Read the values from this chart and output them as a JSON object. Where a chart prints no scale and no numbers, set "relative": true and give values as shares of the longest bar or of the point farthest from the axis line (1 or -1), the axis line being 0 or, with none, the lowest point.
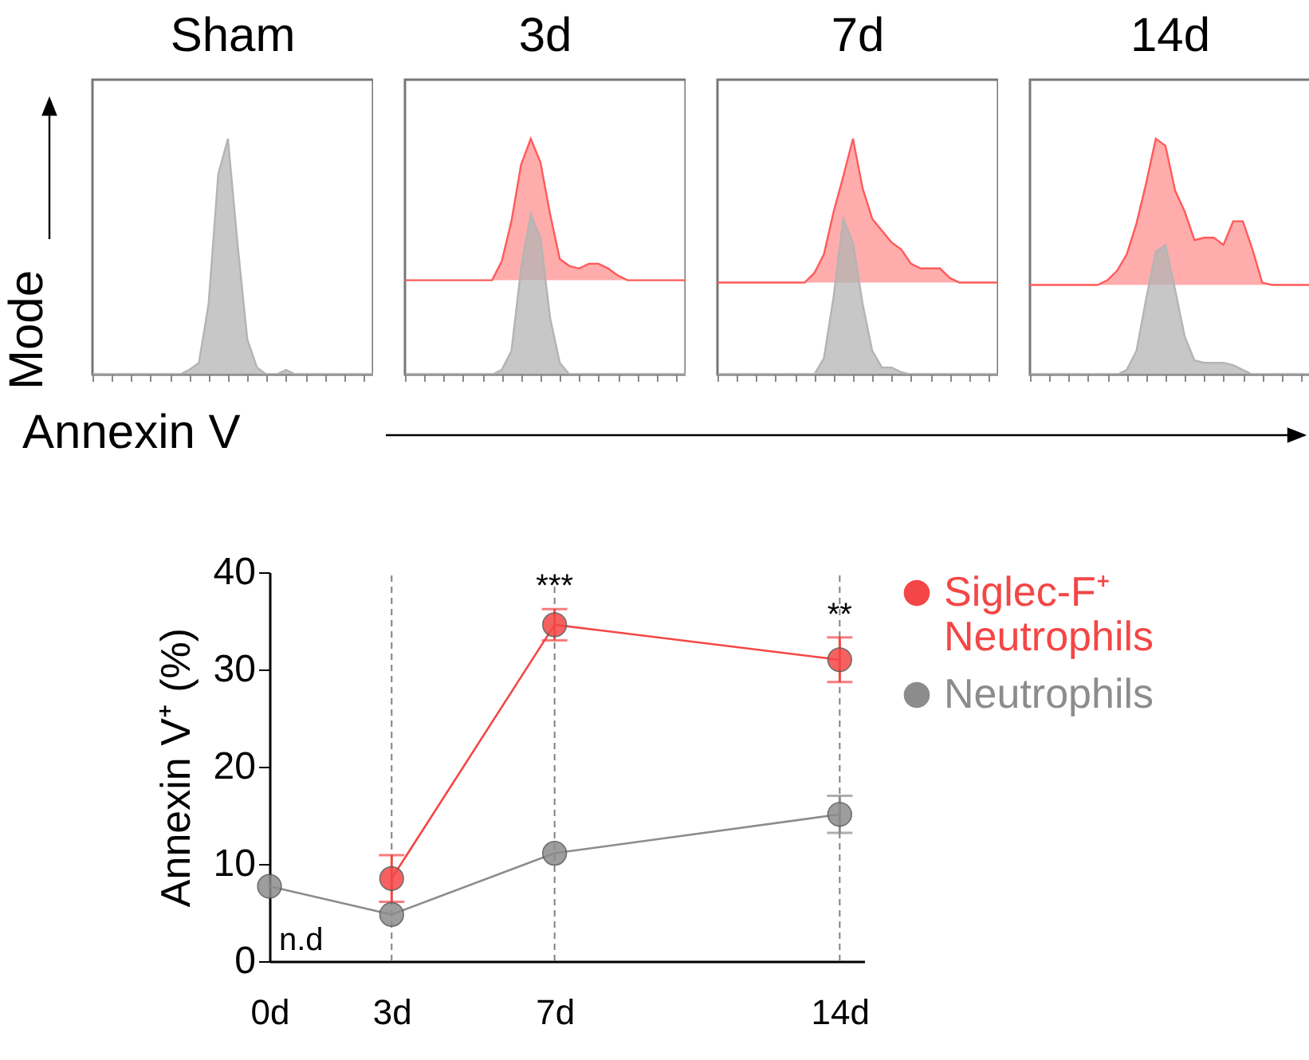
{
  "chart_data": [
    {
      "type": "area",
      "title": "Sham",
      "ylabel": "Mode",
      "xlabel": "Annexin V",
      "relative": true,
      "tick_labels": false,
      "categories": [
        null,
        null,
        null,
        null,
        null,
        null,
        null,
        null,
        null,
        null,
        null,
        null,
        null,
        null,
        null,
        null,
        null,
        null,
        null,
        null,
        null,
        null,
        null,
        null,
        null,
        null,
        null,
        null,
        null,
        null
      ],
      "series": [
        {
          "color": "#b4b4b4",
          "values": [
            0,
            0,
            0,
            0,
            0,
            0,
            0,
            0,
            0,
            0,
            0.02,
            0.05,
            0.3,
            0.85,
            1.0,
            0.55,
            0.15,
            0.03,
            0,
            0,
            0.02,
            0,
            0,
            0,
            0,
            0,
            0,
            0,
            0,
            0
          ]
        }
      ]
    },
    {
      "type": "area",
      "title": "3d",
      "relative": true,
      "tick_labels": false,
      "categories": [
        null,
        null,
        null,
        null,
        null,
        null,
        null,
        null,
        null,
        null,
        null,
        null,
        null,
        null,
        null,
        null,
        null,
        null,
        null,
        null,
        null,
        null,
        null,
        null,
        null,
        null,
        null,
        null,
        null,
        null
      ],
      "series": [
        {
          "color": "#ff5a5a",
          "values": [
            0.4,
            0.4,
            0.4,
            0.4,
            0.4,
            0.4,
            0.4,
            0.4,
            0.4,
            0.4,
            0.48,
            0.65,
            0.89,
            1.0,
            0.9,
            0.68,
            0.49,
            0.46,
            0.45,
            0.47,
            0.47,
            0.45,
            0.42,
            0.4,
            0.4,
            0.4,
            0.4,
            0.4,
            0.4,
            0.4
          ]
        },
        {
          "color": "#b4b4b4",
          "values": [
            0,
            0,
            0,
            0,
            0,
            0,
            0,
            0,
            0,
            0,
            0.02,
            0.1,
            0.45,
            0.68,
            0.58,
            0.24,
            0.05,
            0,
            0,
            0,
            0,
            0,
            0,
            0,
            0,
            0,
            0,
            0,
            0,
            0
          ]
        }
      ]
    },
    {
      "type": "area",
      "title": "7d",
      "relative": true,
      "tick_labels": false,
      "categories": [
        null,
        null,
        null,
        null,
        null,
        null,
        null,
        null,
        null,
        null,
        null,
        null,
        null,
        null,
        null,
        null,
        null,
        null,
        null,
        null,
        null,
        null,
        null,
        null,
        null,
        null,
        null,
        null,
        null,
        null
      ],
      "series": [
        {
          "color": "#ff5a5a",
          "values": [
            0.39,
            0.39,
            0.39,
            0.39,
            0.39,
            0.39,
            0.39,
            0.39,
            0.39,
            0.39,
            0.43,
            0.51,
            0.69,
            0.84,
            1.0,
            0.79,
            0.66,
            0.61,
            0.56,
            0.53,
            0.47,
            0.45,
            0.45,
            0.45,
            0.41,
            0.39,
            0.39,
            0.39,
            0.39,
            0.39
          ]
        },
        {
          "color": "#b4b4b4",
          "values": [
            0,
            0,
            0,
            0,
            0,
            0,
            0,
            0,
            0,
            0,
            0,
            0.07,
            0.33,
            0.66,
            0.56,
            0.3,
            0.1,
            0.03,
            0.03,
            0.01,
            0,
            0,
            0,
            0,
            0,
            0,
            0,
            0,
            0,
            0
          ]
        }
      ]
    },
    {
      "type": "area",
      "title": "14d",
      "relative": true,
      "tick_labels": false,
      "categories": [
        null,
        null,
        null,
        null,
        null,
        null,
        null,
        null,
        null,
        null,
        null,
        null,
        null,
        null,
        null,
        null,
        null,
        null,
        null,
        null,
        null,
        null,
        null,
        null,
        null,
        null,
        null,
        null,
        null,
        null
      ],
      "series": [
        {
          "color": "#ff5a5a",
          "values": [
            0.38,
            0.38,
            0.38,
            0.38,
            0.38,
            0.38,
            0.38,
            0.38,
            0.4,
            0.44,
            0.51,
            0.64,
            0.81,
            1.0,
            0.97,
            0.78,
            0.69,
            0.57,
            0.58,
            0.58,
            0.55,
            0.65,
            0.65,
            0.53,
            0.39,
            0.38,
            0.38,
            0.38,
            0.38,
            0.38
          ]
        },
        {
          "color": "#b4b4b4",
          "values": [
            0,
            0,
            0,
            0,
            0,
            0,
            0,
            0,
            0,
            0,
            0.02,
            0.1,
            0.32,
            0.52,
            0.55,
            0.36,
            0.16,
            0.06,
            0.05,
            0.05,
            0.05,
            0.04,
            0.02,
            0,
            0,
            0,
            0,
            0,
            0,
            0
          ]
        }
      ]
    },
    {
      "type": "line",
      "ylabel": "Annexin V⁺ (%)",
      "marker": "circle",
      "legend": "right",
      "grid": false,
      "x": [
        0,
        3,
        7,
        14
      ],
      "xlim": [
        0,
        14.6
      ],
      "xticks": [
        {
          "value": 0,
          "label": "0d"
        },
        {
          "value": 3,
          "label": "3d"
        },
        {
          "value": 7,
          "label": "7d"
        },
        {
          "value": 14,
          "label": "14d"
        }
      ],
      "ylim": [
        0,
        40
      ],
      "yticks": [
        0,
        10,
        20,
        30,
        40
      ],
      "series": [
        {
          "name": "Siglec-F⁺ Neutrophils",
          "color": "#f44646",
          "values": [
            null,
            8.5,
            34.6,
            31.0
          ],
          "errors": [
            null,
            2.4,
            1.6,
            2.3
          ]
        },
        {
          "name": "Neutrophils",
          "color": "#8c8c8c",
          "values": [
            7.7,
            4.8,
            11.1,
            15.1
          ],
          "errors": [
            null,
            null,
            null,
            1.9
          ]
        }
      ],
      "ref_lines": [
        {
          "axis": "x",
          "value": 3,
          "line_style": "dashed",
          "color": "#808080"
        },
        {
          "axis": "x",
          "value": 7,
          "line_style": "dashed",
          "color": "#808080"
        },
        {
          "axis": "x",
          "value": 14,
          "line_style": "dashed",
          "color": "#808080"
        }
      ],
      "annotations": [
        "n.d",
        {
          "text": "***",
          "x": 7,
          "y": 34.6
        },
        {
          "text": "**",
          "x": 14,
          "y": 31.0
        }
      ]
    }
  ]
}
